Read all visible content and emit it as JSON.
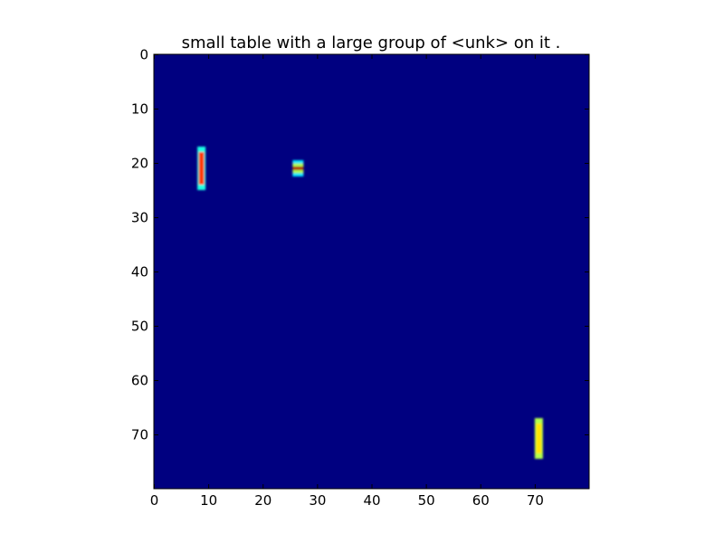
{
  "chart_data": {
    "type": "heatmap",
    "title": "small table with a large group of <unk> on it .",
    "xlabel": "",
    "ylabel": "",
    "xlim": [
      0,
      80
    ],
    "ylim": [
      80,
      0
    ],
    "grid": false,
    "colormap": "jet",
    "background_value": 0.0,
    "xticks": [
      0,
      10,
      20,
      30,
      40,
      50,
      60,
      70
    ],
    "yticks": [
      0,
      10,
      20,
      30,
      40,
      50,
      60,
      70
    ],
    "xtick_labels": [
      "0",
      "10",
      "20",
      "30",
      "40",
      "50",
      "60",
      "70"
    ],
    "ytick_labels": [
      "0",
      "10",
      "20",
      "30",
      "40",
      "50",
      "60",
      "70"
    ],
    "highlighted_regions": [
      {
        "name": "orange-bar",
        "x_range": [
          8,
          9.5
        ],
        "y_range": [
          17,
          25
        ],
        "core_value": 0.82,
        "edge_value": 0.4
      },
      {
        "name": "small-striped-mark",
        "x_range": [
          25.5,
          27.5
        ],
        "y_range": [
          19.5,
          22.5
        ],
        "stripe_values": [
          0.35,
          0.55,
          0.95,
          0.55,
          0.35
        ]
      },
      {
        "name": "yellow-green-bar",
        "x_range": [
          70,
          71.5
        ],
        "y_range": [
          67,
          74.5
        ],
        "core_value": 0.65,
        "edge_value": 0.55
      }
    ]
  }
}
